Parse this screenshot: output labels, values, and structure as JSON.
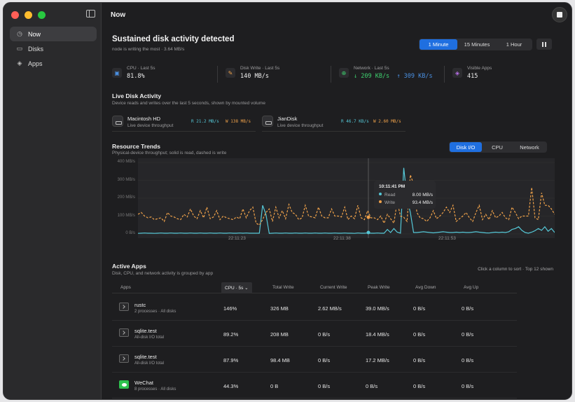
{
  "window": {
    "title": "Now",
    "traffic_colors": [
      "#ff5f57",
      "#febc2e",
      "#28c840"
    ]
  },
  "sidebar": {
    "items": [
      {
        "label": "Now",
        "icon": "clock-icon",
        "active": true
      },
      {
        "label": "Disks",
        "icon": "disk-icon",
        "active": false
      },
      {
        "label": "Apps",
        "icon": "layers-icon",
        "active": false
      }
    ]
  },
  "alert": {
    "title": "Sustained disk activity detected",
    "subtitle": "node is writing the most · 3.64 MB/s"
  },
  "range_control": {
    "options": [
      "1 Minute",
      "15 Minutes",
      "1 Hour"
    ],
    "selected": "1 Minute"
  },
  "stats": [
    {
      "label": "CPU · Last 5s",
      "value": "81.8%",
      "icon": "cpu-icon",
      "color": "#4a90e2"
    },
    {
      "label": "Disk Write · Last 5s",
      "value": "140 MB/s",
      "icon": "pen-icon",
      "color": "#f0a24a"
    },
    {
      "label": "Network · Last 5s",
      "down": "↓ 209 KB/s",
      "up": "↑ 309 KB/s",
      "icon": "globe-icon",
      "color": "#3ecf6e"
    },
    {
      "label": "Visible Apps",
      "value": "415",
      "icon": "stack-icon",
      "color": "#b86fe8"
    }
  ],
  "live_disk": {
    "title": "Live Disk Activity",
    "subtitle": "Device reads and writes over the last 5 seconds, shown by mounted volume",
    "disks": [
      {
        "name": "Macintosh HD",
        "sub": "Live device throughput",
        "read": "R 21.2 MB/s",
        "write": "W 138 MB/s"
      },
      {
        "name": "JianDisk",
        "sub": "Live device throughput",
        "read": "R 46.7 KB/s",
        "write": "W 2.60 MB/s"
      }
    ]
  },
  "trends": {
    "title": "Resource Trends",
    "subtitle": "Physical-device throughput; solid is read, dashed is write",
    "tabs": [
      "Disk I/O",
      "CPU",
      "Network"
    ],
    "selected_tab": "Disk I/O",
    "tooltip": {
      "time": "10:11:41 PM",
      "rows": [
        {
          "label": "Read",
          "value": "8.00 MB/s",
          "color": "#55c7d6"
        },
        {
          "label": "Write",
          "value": "93.4 MB/s",
          "color": "#f0a24a"
        }
      ]
    }
  },
  "chart_data": {
    "type": "line",
    "ylim": [
      0,
      400
    ],
    "yticks": [
      "400 MB/s",
      "300 MB/s",
      "200 MB/s",
      "100 MB/s",
      "0 B/s"
    ],
    "xticks": [
      "22:11:23",
      "22:11:38",
      "22:11:53"
    ],
    "series": [
      {
        "name": "Read",
        "style": "solid",
        "color": "#55c7d6",
        "values": [
          3,
          4,
          5,
          4,
          4,
          3,
          4,
          5,
          4,
          4,
          5,
          4,
          4,
          5,
          4,
          4,
          5,
          4,
          4,
          5,
          4,
          4,
          5,
          4,
          4,
          5,
          4,
          4,
          5,
          4,
          4,
          5,
          4,
          5,
          4,
          4,
          4,
          4,
          160,
          110,
          3,
          4,
          5,
          4,
          4,
          5,
          4,
          4,
          5,
          4,
          4,
          5,
          4,
          4,
          5,
          4,
          4,
          5,
          4,
          4,
          5,
          4,
          4,
          5,
          4,
          4,
          3,
          5,
          4,
          4,
          5,
          4,
          4,
          5,
          4,
          4,
          25,
          8,
          30,
          10,
          4,
          370,
          200,
          120,
          8,
          8,
          10,
          12,
          10,
          8,
          6,
          8,
          10,
          12,
          10,
          8,
          8,
          10,
          8,
          10,
          8,
          8,
          10,
          12,
          10,
          8,
          6,
          5,
          8,
          10,
          8,
          10,
          8,
          12,
          25,
          30,
          40,
          20,
          8,
          4,
          10,
          18,
          30,
          20,
          40,
          15,
          30,
          8
        ]
      },
      {
        "name": "Write",
        "style": "dashed",
        "color": "#f0a24a",
        "values": [
          110,
          120,
          100,
          90,
          95,
          80,
          85,
          90,
          70,
          120,
          100,
          95,
          85,
          80,
          110,
          95,
          140,
          100,
          85,
          130,
          90,
          150,
          85,
          95,
          130,
          80,
          100,
          90,
          85,
          80,
          95,
          85,
          140,
          90,
          130,
          150,
          60,
          50,
          80,
          120,
          140,
          70,
          150,
          90,
          130,
          85,
          165,
          120,
          110,
          80,
          90,
          160,
          100,
          95,
          90,
          150,
          100,
          90,
          90,
          140,
          100,
          100,
          95,
          150,
          80,
          100,
          85,
          160,
          90,
          80,
          130,
          90,
          90,
          80,
          100,
          60,
          110,
          85,
          60,
          180,
          100,
          93,
          70,
          330,
          280,
          120,
          90,
          85,
          70,
          90,
          130,
          85,
          100,
          120,
          150,
          120,
          160,
          70,
          85,
          100,
          120,
          90,
          70,
          120,
          160,
          80,
          110,
          80,
          130,
          90,
          100,
          120,
          90,
          80,
          150,
          120,
          85,
          100,
          100,
          100,
          260,
          90,
          80,
          230,
          160,
          160,
          140,
          110
        ]
      }
    ]
  },
  "apps": {
    "title": "Active Apps",
    "subtitle": "Disk, CPU, and network activity is grouped by app",
    "note": "Click a column to sort · Top 12 shown",
    "columns": [
      "Apps",
      "CPU · 5s ⌄",
      "Total Write",
      "Current Write",
      "Peak Write",
      "Avg Down",
      "Avg Up"
    ],
    "rows": [
      {
        "name": "rustc",
        "sub": "2 processes · All disks",
        "icon": "terminal-icon",
        "cpu": "146%",
        "total_write": "326 MB",
        "current_write": "2.62 MB/s",
        "peak_write": "39.0 MB/s",
        "avg_down": "0 B/s",
        "avg_up": "0 B/s"
      },
      {
        "name": "sqlite.test",
        "sub": "All-disk I/O total",
        "icon": "terminal-icon",
        "cpu": "89.2%",
        "total_write": "208 MB",
        "current_write": "0 B/s",
        "peak_write": "18.4 MB/s",
        "avg_down": "0 B/s",
        "avg_up": "0 B/s"
      },
      {
        "name": "sqlite.test",
        "sub": "All-disk I/O total",
        "icon": "terminal-icon",
        "cpu": "87.9%",
        "total_write": "98.4 MB",
        "current_write": "0 B/s",
        "peak_write": "17.2 MB/s",
        "avg_down": "0 B/s",
        "avg_up": "0 B/s"
      },
      {
        "name": "WeChat",
        "sub": "8 processes · All disks",
        "icon": "wechat-icon",
        "cpu": "44.3%",
        "total_write": "0 B",
        "current_write": "0 B/s",
        "peak_write": "0 B/s",
        "avg_down": "0 B/s",
        "avg_up": "0 B/s"
      }
    ]
  }
}
